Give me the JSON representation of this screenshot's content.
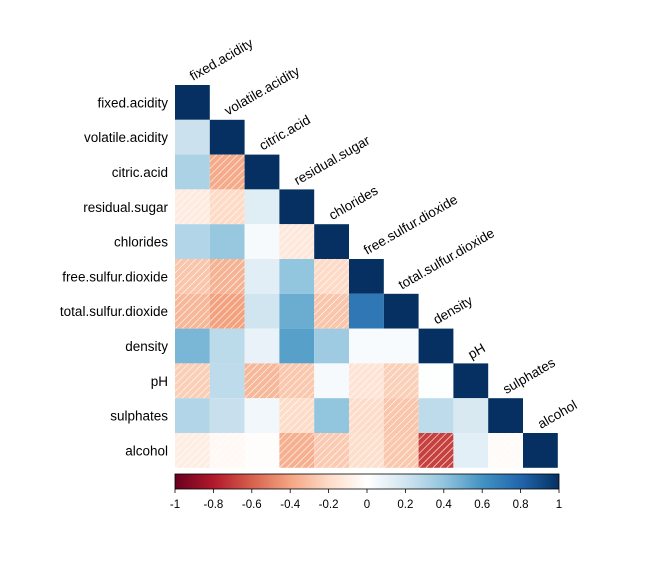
{
  "chart_data": {
    "type": "heatmap",
    "layout": "lower-triangular correlation matrix with diagonal labels",
    "variables": [
      "fixed.acidity",
      "volatile.acidity",
      "citric.acid",
      "residual.sugar",
      "chlorides",
      "free.sulfur.dioxide",
      "total.sulfur.dioxide",
      "density",
      "pH",
      "sulphates",
      "alcohol"
    ],
    "matrix": [
      [
        1
      ],
      [
        0.22,
        1
      ],
      [
        0.32,
        -0.38,
        1
      ],
      [
        -0.11,
        -0.2,
        0.14,
        1
      ],
      [
        0.3,
        0.38,
        0.04,
        -0.13,
        1
      ],
      [
        -0.28,
        -0.35,
        0.13,
        0.4,
        -0.2,
        1
      ],
      [
        -0.33,
        -0.41,
        0.2,
        0.5,
        -0.28,
        0.72,
        1
      ],
      [
        0.46,
        0.27,
        0.1,
        0.55,
        0.36,
        0.03,
        0.03,
        1
      ],
      [
        -0.25,
        0.26,
        -0.33,
        -0.27,
        0.04,
        -0.15,
        -0.24,
        0.01,
        1
      ],
      [
        0.3,
        0.23,
        0.06,
        -0.19,
        0.4,
        -0.19,
        -0.28,
        0.26,
        0.17,
        1
      ],
      [
        -0.1,
        -0.04,
        -0.01,
        -0.36,
        -0.26,
        -0.18,
        -0.27,
        -0.69,
        0.12,
        -0.02,
        1
      ]
    ],
    "color_scale": {
      "min": -1,
      "max": 1,
      "ticks": [
        "-1",
        "-0.8",
        "-0.6",
        "-0.4",
        "-0.2",
        "0",
        "0.2",
        "0.4",
        "0.6",
        "0.8",
        "1"
      ],
      "colors": [
        "#67001F",
        "#B2182B",
        "#D6604D",
        "#F4A582",
        "#FDDBC7",
        "#FFFFFF",
        "#D1E5F0",
        "#92C5DE",
        "#4393C3",
        "#2166AC",
        "#053061"
      ]
    },
    "negative_cells_hatched": true,
    "legend_placement": "bottom"
  }
}
